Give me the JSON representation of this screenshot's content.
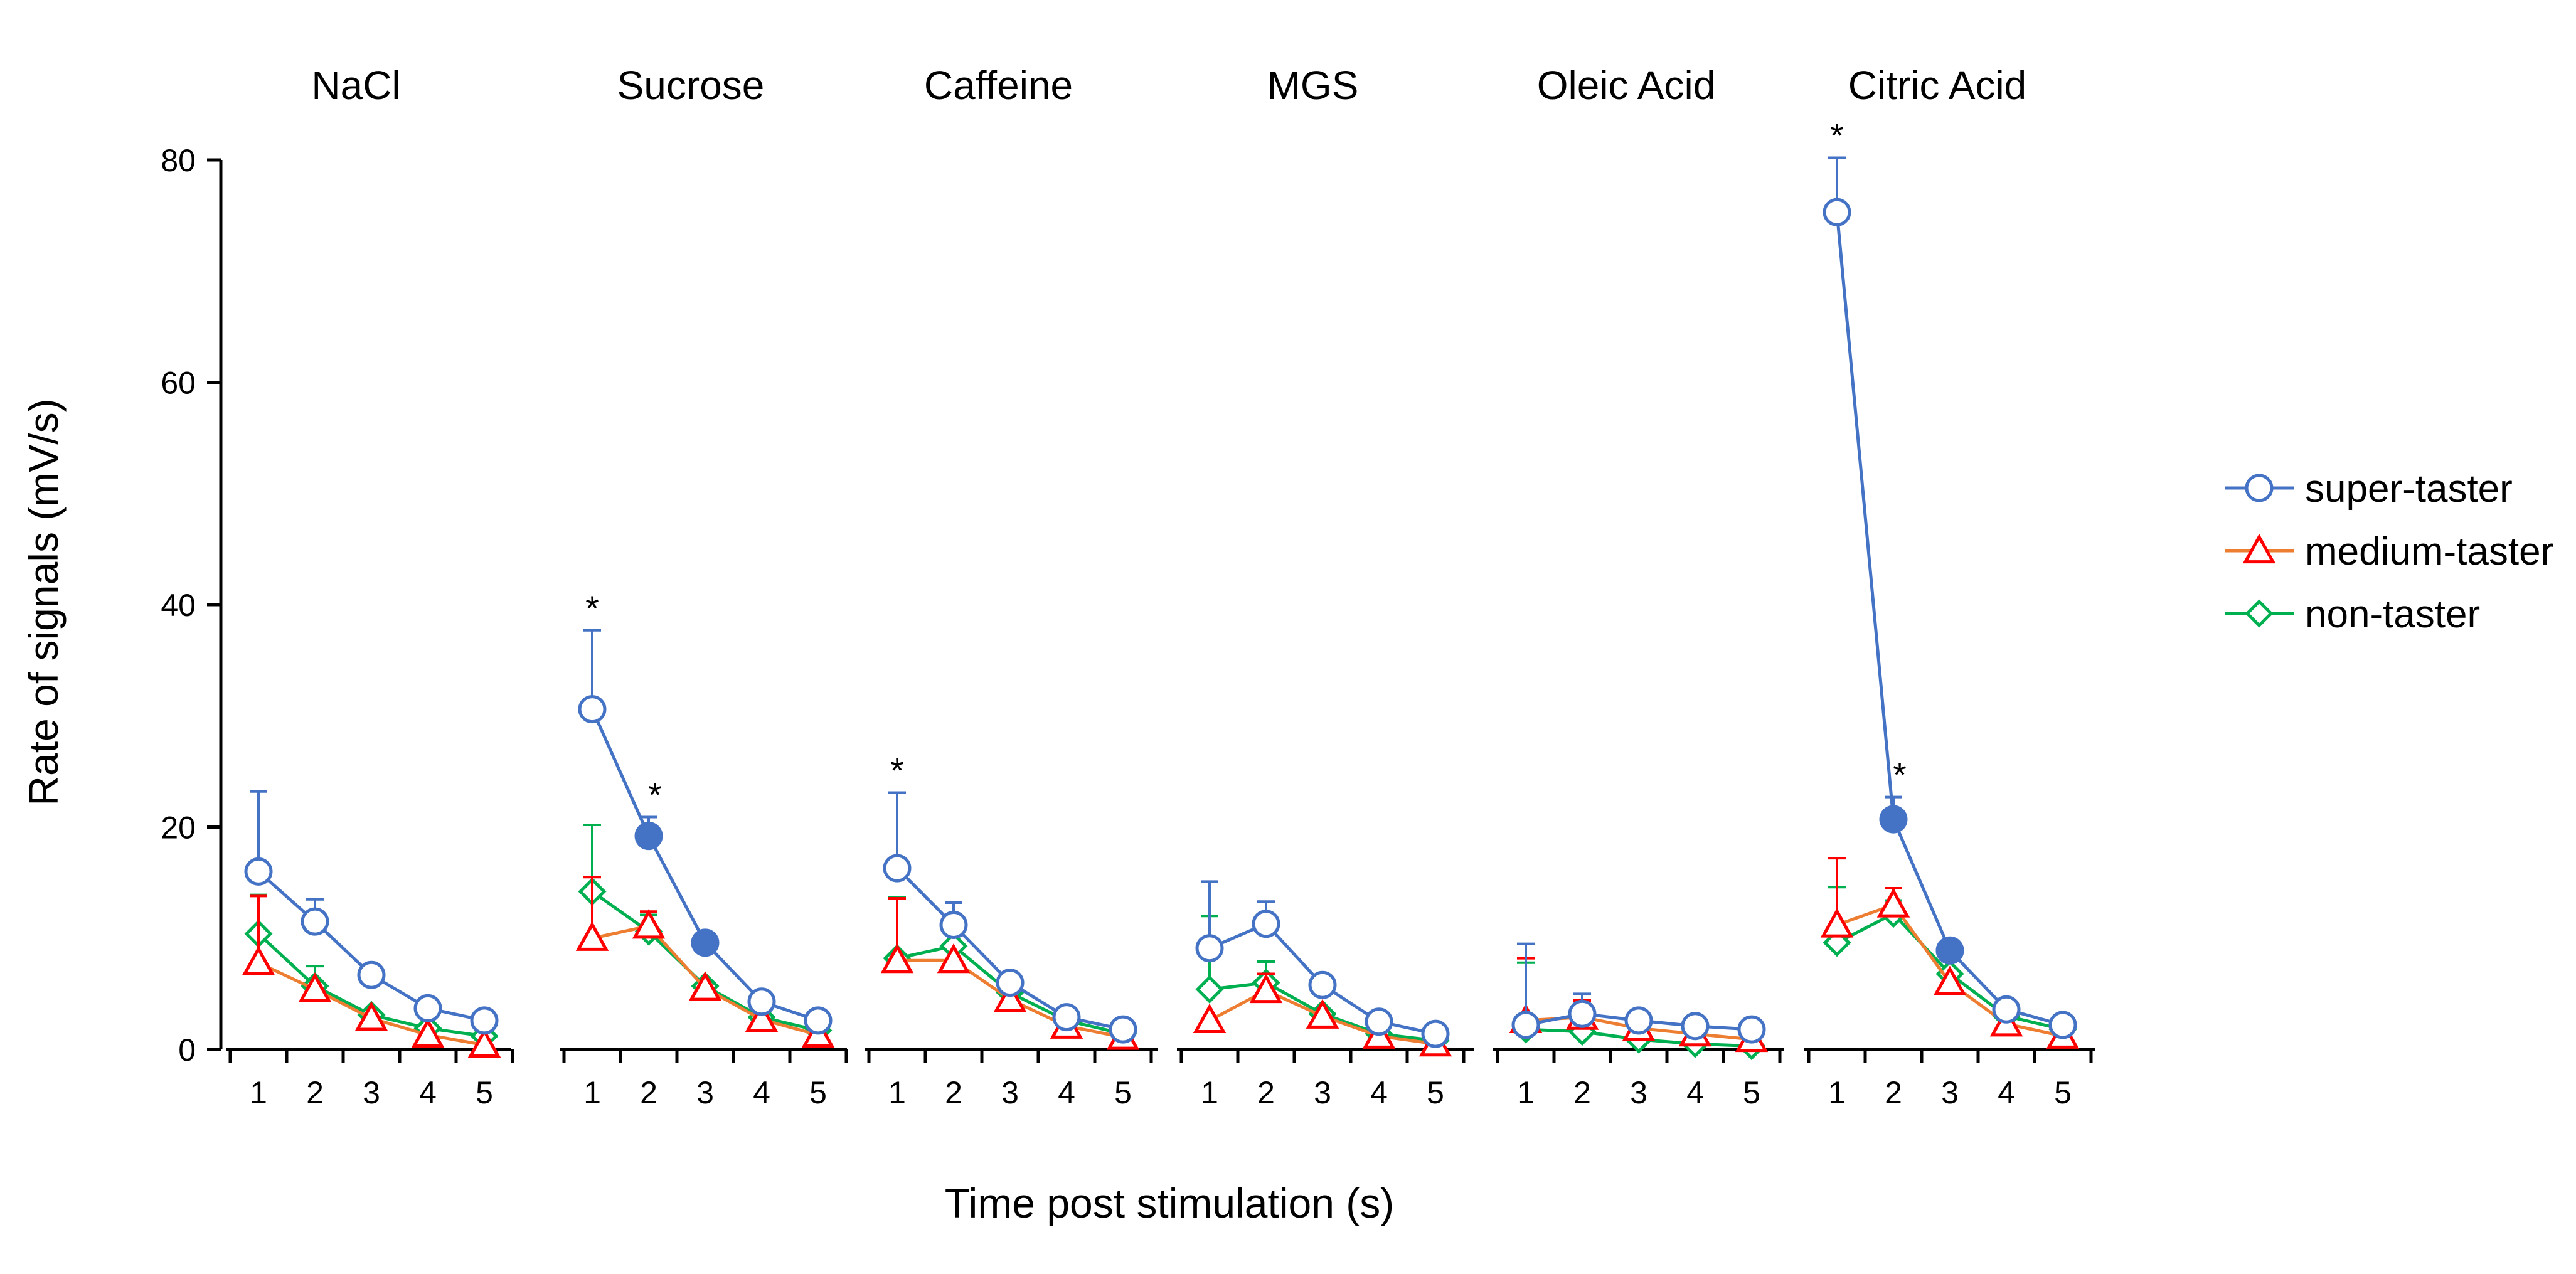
{
  "chart_data": {
    "type": "line",
    "ylabel": "Rate of signals (mV/s)",
    "xlabel": "Time post stimulation (s)",
    "ylim": [
      0,
      80
    ],
    "yticks": [
      0,
      20,
      40,
      60,
      80
    ],
    "x": [
      1,
      2,
      3,
      4,
      5
    ],
    "series_defs": [
      {
        "key": "super",
        "name": "super-taster",
        "color": "#4472C4",
        "marker": "circle"
      },
      {
        "key": "medium",
        "name": "medium-taster",
        "color": "#ED7D31",
        "marker_color": "#FF0000",
        "marker": "triangle"
      },
      {
        "key": "non",
        "name": "non-taster",
        "color": "#00B050",
        "marker": "diamond"
      }
    ],
    "legend": {
      "position": "right",
      "labels": [
        "super-taster",
        "medium-taster",
        "non-taster"
      ]
    },
    "panels": [
      {
        "title": "NaCl",
        "super": {
          "values": [
            16.0,
            11.5,
            6.7,
            3.7,
            2.6
          ],
          "err": [
            7.2,
            2.0,
            0,
            0,
            0
          ],
          "filled": [],
          "sig": []
        },
        "medium": {
          "values": [
            7.8,
            5.4,
            2.8,
            1.3,
            0.4
          ],
          "err": [
            6.0,
            0,
            0,
            0,
            0
          ]
        },
        "non": {
          "values": [
            10.4,
            5.7,
            3.1,
            1.9,
            1.2
          ],
          "err": [
            3.5,
            1.8,
            0,
            0,
            0
          ]
        }
      },
      {
        "title": "Sucrose",
        "super": {
          "values": [
            30.6,
            19.2,
            9.6,
            4.3,
            2.6
          ],
          "err": [
            7.1,
            1.7,
            0,
            0,
            0
          ],
          "filled": [
            2,
            3
          ],
          "sig": [
            1,
            2
          ]
        },
        "medium": {
          "values": [
            10.0,
            11.1,
            5.5,
            2.7,
            1.3
          ],
          "err": [
            5.5,
            1.3,
            0,
            0,
            0
          ]
        },
        "non": {
          "values": [
            14.2,
            10.6,
            5.7,
            2.9,
            1.7
          ],
          "err": [
            6.0,
            1.5,
            0,
            0,
            0
          ]
        }
      },
      {
        "title": "Caffeine",
        "super": {
          "values": [
            16.3,
            11.2,
            6.0,
            2.9,
            1.8
          ],
          "err": [
            6.8,
            2.0,
            0,
            0,
            0
          ],
          "filled": [],
          "sig": [
            1
          ]
        },
        "medium": {
          "values": [
            8.0,
            8.0,
            4.5,
            2.1,
            1.1
          ],
          "err": [
            5.6,
            0,
            0,
            0,
            0
          ]
        },
        "non": {
          "values": [
            8.2,
            9.3,
            5.1,
            2.6,
            1.4
          ],
          "err": [
            5.5,
            0,
            0,
            0,
            0
          ]
        }
      },
      {
        "title": "MGS",
        "super": {
          "values": [
            9.1,
            11.3,
            5.8,
            2.5,
            1.4
          ],
          "err": [
            6.0,
            2.0,
            0,
            0,
            0
          ],
          "filled": [],
          "sig": []
        },
        "medium": {
          "values": [
            2.6,
            5.3,
            3.0,
            1.2,
            0.5
          ],
          "err": [
            0,
            1.5,
            0,
            0,
            0
          ]
        },
        "non": {
          "values": [
            5.4,
            6.0,
            3.2,
            1.4,
            0.8
          ],
          "err": [
            6.6,
            1.9,
            0,
            0,
            0
          ]
        }
      },
      {
        "title": "Oleic Acid",
        "super": {
          "values": [
            2.2,
            3.2,
            2.6,
            2.1,
            1.8
          ],
          "err": [
            7.3,
            1.8,
            0,
            0,
            0
          ],
          "filled": [],
          "sig": []
        },
        "medium": {
          "values": [
            2.6,
            2.9,
            1.9,
            1.4,
            0.9
          ],
          "err": [
            5.6,
            1.5,
            0,
            0,
            0
          ]
        },
        "non": {
          "values": [
            1.8,
            1.6,
            0.9,
            0.5,
            0.3
          ],
          "err": [
            6.0,
            0,
            0,
            0,
            0
          ]
        }
      },
      {
        "title": "Citric Acid",
        "super": {
          "values": [
            75.3,
            20.7,
            8.9,
            3.6,
            2.2
          ],
          "err": [
            4.9,
            2.0,
            0,
            0,
            0
          ],
          "filled": [
            2,
            3
          ],
          "sig": [
            1,
            2
          ]
        },
        "medium": {
          "values": [
            11.2,
            13.0,
            6.0,
            2.3,
            1.2
          ],
          "err": [
            6.0,
            1.5,
            0,
            0,
            0
          ]
        },
        "non": {
          "values": [
            9.6,
            12.2,
            6.8,
            3.0,
            1.8
          ],
          "err": [
            5.0,
            1.2,
            0,
            0,
            0
          ]
        }
      }
    ]
  }
}
